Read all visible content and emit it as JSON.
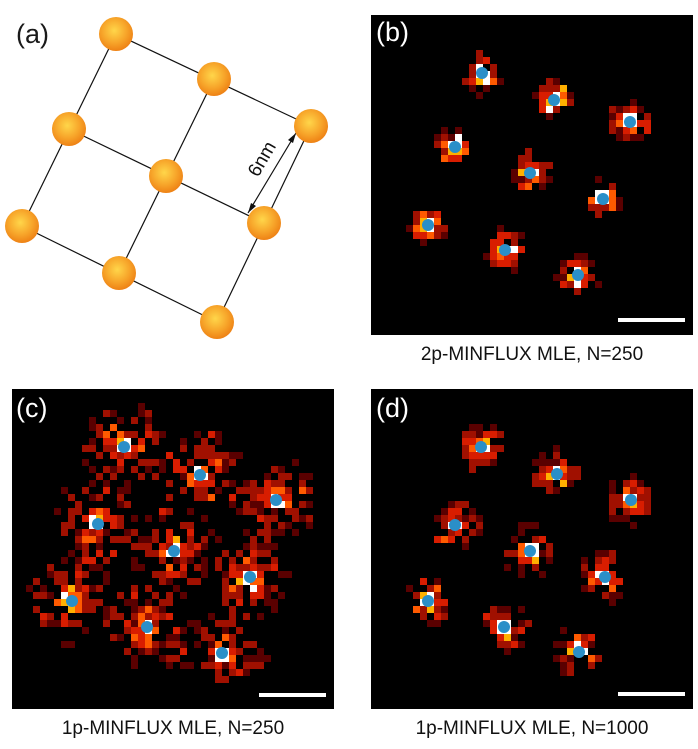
{
  "panels": {
    "a": {
      "label": "(a)",
      "dimension_label": "6nm",
      "colors": {
        "atom_core": "#ffd64a",
        "atom_edge": "#ef8a17",
        "line": "#111111"
      }
    },
    "b": {
      "label": "(b)",
      "caption": "2p-MINFLUX MLE, N=250"
    },
    "c": {
      "label": "(c)",
      "caption": "1p-MINFLUX MLE, N=250"
    },
    "d": {
      "label": "(d)",
      "caption": "1p-MINFLUX MLE, N=1000"
    }
  },
  "colors": {
    "background": "#000000",
    "estimate_marker": "#2a8fc8",
    "heat_low": "#5a0000",
    "heat_mid": "#d81d00",
    "heat_high": "#ffb000",
    "heat_peak": "#ffffff",
    "scalebar": "#ffffff"
  }
}
